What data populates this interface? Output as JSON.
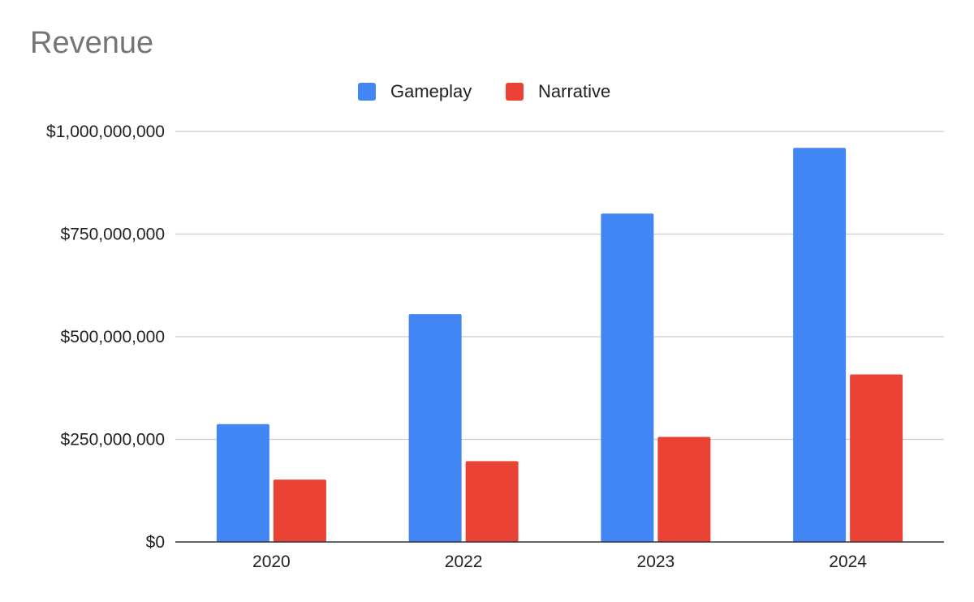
{
  "chart_data": {
    "type": "bar",
    "title": "Revenue",
    "categories": [
      "2020",
      "2022",
      "2023",
      "2024"
    ],
    "series": [
      {
        "name": "Gameplay",
        "color": "#4285F4",
        "values": [
          287000000,
          555000000,
          800000000,
          960000000
        ]
      },
      {
        "name": "Narrative",
        "color": "#EA4335",
        "values": [
          152000000,
          197000000,
          256000000,
          408000000
        ]
      }
    ],
    "ylim": [
      0,
      1000000000
    ],
    "y_ticks": [
      0,
      250000000,
      500000000,
      750000000,
      1000000000
    ],
    "y_tick_labels": [
      "$0",
      "$250,000,000",
      "$500,000,000",
      "$750,000,000",
      "$1,000,000,000"
    ],
    "grid": true,
    "legend_position": "top"
  }
}
